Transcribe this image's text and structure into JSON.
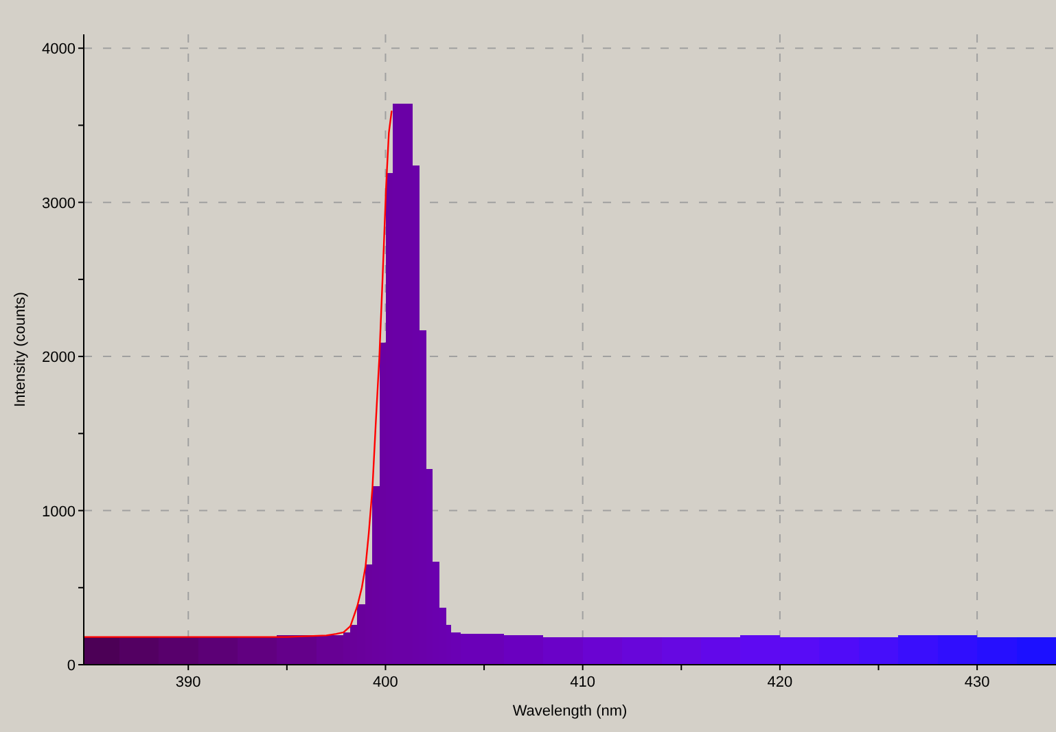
{
  "chart_data": {
    "type": "histogram",
    "xlabel": "Wavelength (nm)",
    "ylabel": "Intensity (counts)",
    "xlim": [
      384.7,
      434.0
    ],
    "ylim": [
      0,
      4090
    ],
    "xticks": [
      390,
      {
        "value": 395,
        "label": null
      },
      400,
      {
        "value": 405,
        "label": null
      },
      410,
      {
        "value": 415,
        "label": null
      },
      420,
      {
        "value": 425,
        "label": null
      },
      430
    ],
    "yticks": [
      0,
      {
        "value": 500,
        "label": null
      },
      1000,
      {
        "value": 1500,
        "label": null
      },
      2000,
      {
        "value": 2500,
        "label": null
      },
      3000,
      {
        "value": 3500,
        "label": null
      },
      4000
    ],
    "grid": true,
    "bins": [
      384.7,
      386.5,
      388.5,
      390.5,
      392.5,
      394.5,
      396.5,
      397.87,
      398.22,
      398.57,
      398.99,
      399.34,
      399.69,
      400.03,
      400.38,
      401.36,
      401.71,
      402.06,
      402.4,
      402.75,
      403.1,
      403.31,
      403.8,
      406,
      408,
      410,
      412,
      414,
      416,
      418,
      420,
      422,
      424,
      426,
      428,
      430,
      432,
      434.0
    ],
    "values": [
      180,
      180,
      180,
      180,
      180,
      190,
      190,
      210,
      260,
      390,
      650,
      1160,
      2090,
      3190,
      3640,
      3240,
      2170,
      1270,
      670,
      370,
      260,
      210,
      200,
      190,
      180,
      180,
      180,
      180,
      180,
      190,
      180,
      180,
      180,
      190,
      190,
      180,
      180
    ],
    "colors": [
      "#4c0056",
      "#530062",
      "#58006c",
      "#5c0076",
      "#610080",
      "#64008a",
      "#670094",
      "#680098",
      "#69009a",
      "#69009c",
      "#6a009e",
      "#6a00a0",
      "#6a00a2",
      "#6a00a4",
      "#6a00a6",
      "#6a00a8",
      "#6a00aa",
      "#6a00ac",
      "#6a00ae",
      "#6a00b0",
      "#6a00b2",
      "#6a00b4",
      "#6a00b8",
      "#6a00c0",
      "#6a02c8",
      "#6a04d2",
      "#6806da",
      "#6608e2",
      "#6208ea",
      "#5e0af2",
      "#580cf6",
      "#500cf8",
      "#460efa",
      "#3a0efc",
      "#300efd",
      "#260ffe",
      "#1c10ff"
    ],
    "series": [
      {
        "type": "line",
        "color": "#ff0000",
        "x": [
          384.7,
          390,
          395,
          397,
          397.5,
          397.87,
          398.22,
          398.57,
          398.8,
          398.99,
          399.15,
          399.34,
          399.5,
          399.69,
          399.85,
          400.03,
          400.17,
          400.31
        ],
        "values": [
          180,
          180,
          180,
          190,
          200,
          210,
          250,
          380,
          500,
          640,
          850,
          1150,
          1550,
          2000,
          2500,
          3100,
          3450,
          3590
        ]
      }
    ]
  }
}
